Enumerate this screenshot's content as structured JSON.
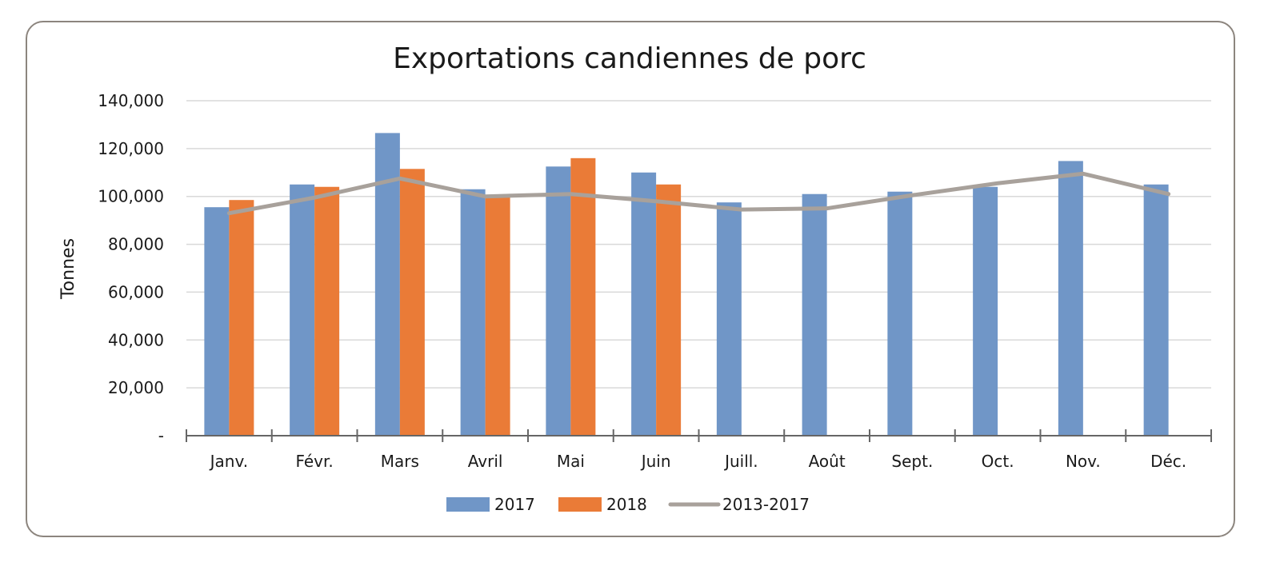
{
  "chart_data": {
    "type": "bar",
    "title": "Exportations candiennes de porc",
    "xlabel": "",
    "ylabel": "Tonnes",
    "ylim": [
      0,
      140000
    ],
    "y_tick_labels": [
      "-",
      "20,000",
      "40,000",
      "60,000",
      "80,000",
      "100,000",
      "120,000",
      "140,000"
    ],
    "categories": [
      "Janv.",
      "Févr.",
      "Mars",
      "Avril",
      "Mai",
      "Juin",
      "Juill.",
      "Août",
      "Sept.",
      "Oct.",
      "Nov.",
      "Déc."
    ],
    "series": [
      {
        "name": "2017",
        "kind": "bar",
        "color": "#7096c7",
        "values": [
          95500,
          105000,
          126500,
          103000,
          112500,
          110000,
          97500,
          101000,
          102000,
          104000,
          114800,
          105000
        ]
      },
      {
        "name": "2018",
        "kind": "bar",
        "color": "#ea7b37",
        "values": [
          98500,
          104000,
          111500,
          100000,
          116000,
          105000,
          null,
          null,
          null,
          null,
          null,
          null
        ]
      },
      {
        "name": "2013-2017",
        "kind": "line",
        "color": "#a8a19b",
        "values": [
          93000,
          99500,
          107500,
          100000,
          101000,
          98000,
          94500,
          95000,
          100500,
          105500,
          109500,
          101000
        ]
      }
    ],
    "grid": true,
    "legend_position": "bottom"
  }
}
